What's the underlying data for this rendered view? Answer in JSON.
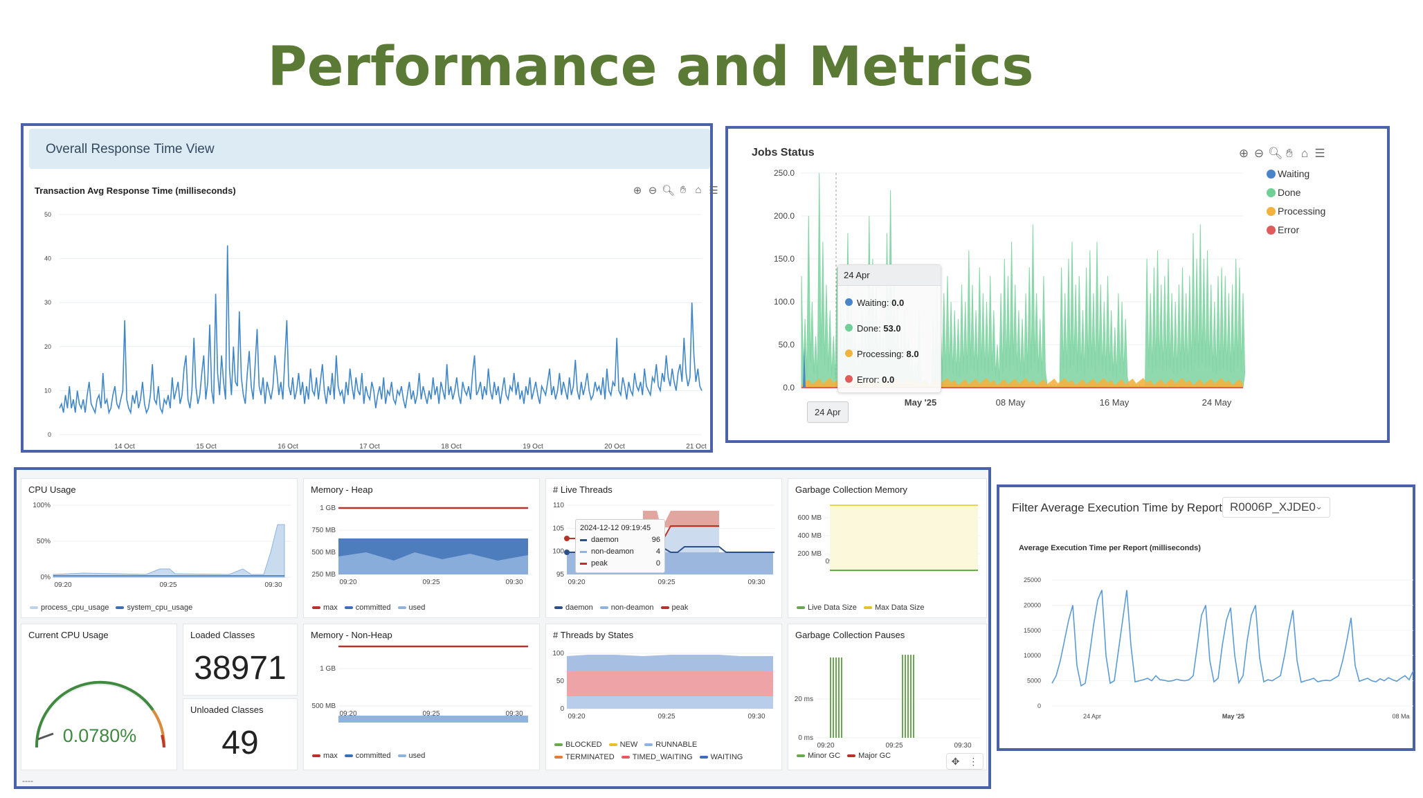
{
  "page": {
    "title": "Performance and Metrics"
  },
  "response_time": {
    "header": "Overall Response Time View",
    "chart_title": "Transaction Avg Response Time (milliseconds)",
    "toolbar_icons": [
      "zoom-in-icon",
      "zoom-out-icon",
      "zoom-select-icon",
      "pan-icon",
      "home-icon",
      "menu-icon"
    ],
    "chart_data": {
      "type": "line",
      "yticks": [
        "50",
        "40",
        "30",
        "20",
        "10",
        "0"
      ],
      "xticks": [
        "14 Oct",
        "15 Oct",
        "16 Oct",
        "17 Oct",
        "18 Oct",
        "19 Oct",
        "20 Oct",
        "21 Oct"
      ],
      "ylim": [
        0,
        50
      ],
      "x_range": [
        "13 Oct 12:00",
        "21 Oct 00:00"
      ],
      "values": [
        6,
        7,
        5,
        9,
        6,
        11,
        6,
        8,
        5,
        10,
        7,
        6,
        8,
        5,
        9,
        12,
        7,
        6,
        5,
        8,
        9,
        6,
        14,
        7,
        8,
        5,
        6,
        9,
        11,
        7,
        6,
        8,
        10,
        26,
        8,
        6,
        5,
        9,
        7,
        10,
        6,
        8,
        12,
        7,
        5,
        6,
        9,
        16,
        8,
        7,
        11,
        6,
        5,
        8,
        7,
        9,
        6,
        13,
        8,
        10,
        12,
        7,
        9,
        15,
        18,
        8,
        6,
        10,
        22,
        11,
        7,
        9,
        14,
        18,
        8,
        12,
        25,
        10,
        7,
        32,
        14,
        9,
        18,
        12,
        8,
        43,
        15,
        9,
        20,
        12,
        11,
        28,
        13,
        9,
        7,
        14,
        19,
        11,
        8,
        16,
        24,
        11,
        9,
        13,
        7,
        12,
        10,
        8,
        11,
        18,
        14,
        9,
        12,
        8,
        17,
        26,
        11,
        9,
        13,
        8,
        10,
        14,
        9,
        12,
        7,
        11,
        8,
        15,
        10,
        9,
        13,
        8,
        12,
        16,
        10,
        7,
        11,
        9,
        14,
        8,
        18,
        11,
        9,
        10,
        7,
        12,
        9,
        15,
        11,
        8,
        13,
        10,
        9,
        14,
        7,
        11,
        9,
        8,
        12,
        10,
        6,
        9,
        11,
        8,
        13,
        7,
        10,
        9,
        12,
        8,
        7,
        10,
        9,
        11,
        8,
        6,
        9,
        12,
        8,
        10,
        7,
        9,
        14,
        8,
        11,
        9,
        7,
        10,
        8,
        13,
        9,
        11,
        7,
        12,
        10,
        8,
        16,
        9,
        11,
        8,
        10,
        13,
        9,
        7,
        12,
        10,
        9,
        11,
        8,
        14,
        18,
        9,
        10,
        12,
        8,
        11,
        9,
        15,
        10,
        8,
        12,
        9,
        11,
        7,
        10,
        13,
        9,
        8,
        11,
        10,
        14,
        9,
        12,
        8,
        10,
        7,
        11,
        9,
        13,
        8,
        10,
        12,
        9,
        7,
        11,
        10,
        9,
        12,
        15,
        9,
        11,
        8,
        10,
        14,
        9,
        12,
        10,
        8,
        13,
        9,
        11,
        17,
        10,
        8,
        12,
        9,
        11,
        14,
        10,
        8,
        9,
        12,
        10,
        11,
        9,
        13,
        8,
        15,
        10,
        9,
        12,
        11,
        22,
        10,
        9,
        13,
        11,
        8,
        12,
        10,
        9,
        14,
        11,
        10,
        12,
        9,
        15,
        11,
        10,
        9,
        13,
        12,
        16,
        11,
        10,
        14,
        12,
        18,
        13,
        11,
        15,
        12,
        10,
        14,
        16,
        12,
        22,
        14,
        11,
        13,
        30,
        18,
        12,
        15,
        11,
        10
      ]
    }
  },
  "jobs_status": {
    "title": "Jobs Status",
    "toolbar_icons": [
      "zoom-in-icon",
      "zoom-out-icon",
      "zoom-select-icon",
      "pan-icon",
      "home-icon",
      "menu-icon"
    ],
    "legend": [
      {
        "name": "Waiting",
        "color": "#4a84c8"
      },
      {
        "name": "Done",
        "color": "#6fcf97"
      },
      {
        "name": "Processing",
        "color": "#f2b33d"
      },
      {
        "name": "Error",
        "color": "#e05c5c"
      }
    ],
    "tooltip": {
      "date": "24 Apr",
      "rows": [
        {
          "label": "Waiting:",
          "value": "0.0",
          "color": "#4a84c8"
        },
        {
          "label": "Done:",
          "value": "53.0",
          "color": "#6fcf97"
        },
        {
          "label": "Processing:",
          "value": "8.0",
          "color": "#f2b33d"
        },
        {
          "label": "Error:",
          "value": "0.0",
          "color": "#e05c5c"
        }
      ]
    },
    "chart_data": {
      "type": "area",
      "yticks": [
        "250.0",
        "200.0",
        "150.0",
        "100.0",
        "50.0",
        "0.0"
      ],
      "xticks": [
        "24 Apr",
        "May '25",
        "08 May",
        "16 May",
        "24 May"
      ],
      "ylim": [
        0,
        250
      ],
      "done_peaks": [
        130,
        80,
        200,
        100,
        60,
        250,
        170,
        120,
        90,
        60,
        140,
        100,
        80,
        180,
        110,
        70,
        50,
        110,
        90,
        200,
        150,
        120,
        80,
        60,
        180,
        230,
        140,
        100,
        70,
        90,
        60,
        40,
        30,
        90,
        120,
        140,
        100,
        80,
        120,
        90,
        110,
        130,
        100,
        90,
        80,
        120,
        100,
        160,
        120,
        90,
        140,
        110,
        100,
        130,
        90,
        50,
        110,
        150,
        130,
        170,
        120,
        90,
        80,
        110,
        140,
        190,
        110,
        80,
        130,
        150,
        100,
        120,
        180,
        140,
        110,
        150,
        170,
        120,
        130,
        90,
        140,
        160,
        110,
        170,
        120,
        100,
        130,
        90,
        70,
        110,
        100,
        80,
        60,
        30,
        30,
        90,
        130,
        150,
        110,
        140,
        160,
        120,
        130,
        150,
        110,
        100,
        120,
        140,
        110,
        130,
        180,
        150,
        190,
        150,
        160,
        120,
        100,
        130,
        140,
        130,
        110,
        120,
        150,
        140,
        110
      ]
    }
  },
  "dashboard": {
    "footer": "----",
    "cpu": {
      "title": "CPU Usage",
      "yticks": [
        "100%",
        "50%",
        "0%"
      ],
      "xticks": [
        "09:20",
        "09:25",
        "09:30"
      ],
      "legend": [
        "process_cpu_usage",
        "system_cpu_usage"
      ]
    },
    "heap": {
      "title": "Memory - Heap",
      "yticks": [
        "1 GB",
        "750 MB",
        "500 MB",
        "250 MB"
      ],
      "xticks": [
        "09:20",
        "09:25",
        "09:30"
      ],
      "legend": [
        "max",
        "committed",
        "used"
      ]
    },
    "threads": {
      "title": "# Live Threads",
      "yticks": [
        "110",
        "105",
        "100",
        "95"
      ],
      "xticks": [
        "09:20",
        "09:25",
        "09:30"
      ],
      "legend": [
        "daemon",
        "non-deamon",
        "peak"
      ],
      "tooltip": {
        "time": "2024-12-12 09:19:45",
        "rows": [
          {
            "label": "daemon",
            "value": "96"
          },
          {
            "label": "non-deamon",
            "value": "4"
          },
          {
            "label": "peak",
            "value": "0"
          }
        ]
      }
    },
    "gc_memory": {
      "title": "Garbage Collection Memory",
      "yticks": [
        "600 MB",
        "400 MB",
        "200 MB"
      ],
      "xticks": [
        "09:20",
        "09:25",
        "09:30"
      ],
      "legend": [
        "Live Data Size",
        "Max Data Size"
      ]
    },
    "current_cpu": {
      "title": "Current CPU Usage",
      "value": "0.0780%"
    },
    "loaded_classes": {
      "title": "Loaded Classes",
      "value": "38971"
    },
    "unloaded_classes": {
      "title": "Unloaded Classes",
      "value": "49"
    },
    "nonheap": {
      "title": "Memory - Non-Heap",
      "yticks": [
        "1 GB",
        "500 MB"
      ],
      "xticks": [
        "09:20",
        "09:25",
        "09:30"
      ],
      "legend": [
        "max",
        "committed",
        "used"
      ]
    },
    "thread_states": {
      "title": "# Threads by States",
      "yticks": [
        "100",
        "50",
        "0"
      ],
      "xticks": [
        "09:20",
        "09:25",
        "09:30"
      ],
      "legend_row1": [
        "BLOCKED",
        "NEW",
        "RUNNABLE"
      ],
      "legend_row2": [
        "TERMINATED",
        "TIMED_WAITING",
        "WAITING"
      ]
    },
    "gc_pauses": {
      "title": "Garbage Collection Pauses",
      "yticks": [
        "20 ms",
        "0 ms"
      ],
      "xticks": [
        "09:20",
        "09:25",
        "09:30"
      ],
      "legend": [
        "Minor GC",
        "Major GC"
      ]
    }
  },
  "exec_time": {
    "filter_label": "Filter Average Execution Time by Report",
    "selected_report": "R0006P_XJDE0",
    "chart_title": "Average Execution Time per Report (milliseconds)",
    "chart_data": {
      "type": "line",
      "yticks": [
        "25000",
        "20000",
        "15000",
        "10000",
        "5000",
        "0"
      ],
      "xticks": [
        "24 Apr",
        "May '25",
        "08 Ma"
      ],
      "ylim": [
        0,
        25000
      ],
      "values": [
        4500,
        6000,
        9000,
        13000,
        17000,
        20000,
        8000,
        4000,
        4500,
        10000,
        16000,
        21000,
        23000,
        10000,
        4500,
        5000,
        11000,
        17000,
        23000,
        12000,
        4800,
        5000,
        5200,
        5500,
        5000,
        6000,
        5200,
        5100,
        4900,
        5000,
        5300,
        5100,
        5000,
        5200,
        6000,
        12000,
        18000,
        20000,
        9000,
        4800,
        5500,
        12000,
        17000,
        19500,
        10000,
        4600,
        6000,
        13000,
        18000,
        20000,
        9500,
        4800,
        5200,
        5000,
        5500,
        6000,
        10000,
        15000,
        19000,
        9000,
        4700,
        5000,
        5200,
        5500,
        4800,
        5000,
        5100,
        5000,
        5500,
        6000,
        9000,
        13000,
        17500,
        8000,
        4900,
        5200,
        5500,
        5000,
        4800,
        5400,
        5000,
        5600,
        5200,
        4900,
        5500,
        6000,
        5200,
        7000
      ]
    }
  }
}
